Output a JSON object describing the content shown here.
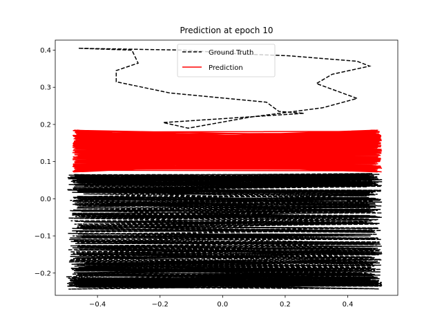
{
  "chart_data": {
    "type": "line",
    "title": "Prediction at epoch 10",
    "xlabel": "",
    "ylabel": "",
    "xlim": [
      -0.535,
      0.56
    ],
    "ylim": [
      -0.26,
      0.427
    ],
    "xticks": [
      -0.4,
      -0.2,
      0.0,
      0.2,
      0.4
    ],
    "xtick_labels": [
      "−0.4",
      "−0.2",
      "0.0",
      "0.2",
      "0.4"
    ],
    "yticks": [
      -0.2,
      -0.1,
      0.0,
      0.1,
      0.2,
      0.3,
      0.4
    ],
    "ytick_labels": [
      "−0.2",
      "−0.1",
      "0.0",
      "0.1",
      "0.2",
      "0.3",
      "0.4"
    ],
    "grid": false,
    "legend_position": "upper center",
    "series": [
      {
        "name": "Ground Truth",
        "color": "#000000",
        "style": "dashed",
        "points": [
          [
            -0.46,
            0.405
          ],
          [
            -0.29,
            0.4
          ],
          [
            -0.27,
            0.365
          ],
          [
            -0.34,
            0.345
          ],
          [
            -0.34,
            0.315
          ],
          [
            -0.17,
            0.285
          ],
          [
            0.14,
            0.26
          ],
          [
            0.18,
            0.235
          ],
          [
            0.26,
            0.23
          ],
          [
            -0.19,
            0.205
          ],
          [
            -0.11,
            0.19
          ],
          [
            0.09,
            0.22
          ],
          [
            0.32,
            0.245
          ],
          [
            0.43,
            0.27
          ],
          [
            0.3,
            0.31
          ],
          [
            0.35,
            0.335
          ],
          [
            0.47,
            0.357
          ],
          [
            0.43,
            0.37
          ],
          [
            0.21,
            0.385
          ],
          [
            0.05,
            0.39
          ],
          [
            -0.12,
            0.4
          ],
          [
            -0.46,
            0.405
          ]
        ]
      },
      {
        "name": "Prediction",
        "color": "#ff0000",
        "style": "solid",
        "points": []
      }
    ],
    "gt_band_y": [
      -0.235,
      0.058
    ],
    "pred_band_y": [
      0.072,
      0.185
    ],
    "band_x": [
      -0.5,
      0.51
    ]
  }
}
